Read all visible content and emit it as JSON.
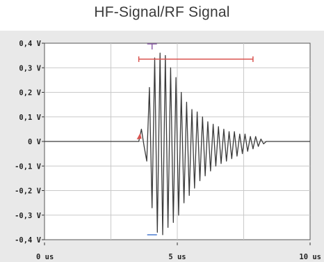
{
  "chart_data": {
    "type": "line",
    "title": "HF-Signal/RF Signal",
    "xlabel": "",
    "ylabel": "",
    "xlim": [
      0,
      10
    ],
    "ylim": [
      -0.4,
      0.4
    ],
    "x_ticks": [
      "0 us",
      "5 us",
      "10 us"
    ],
    "y_ticks": [
      "0,4 V",
      "0,3 V",
      "0,2 V",
      "0,1 V",
      "0 V",
      "-0,1 V",
      "-0,2 V",
      "-0,3 V",
      "-0,4 V"
    ],
    "grid": true,
    "series": [
      {
        "color": "#3a3a3a",
        "x": [
          0.0,
          2.2,
          3.0,
          3.55,
          3.65,
          3.75,
          3.85,
          3.95,
          4.05,
          4.15,
          4.25,
          4.35,
          4.45,
          4.55,
          4.65,
          4.75,
          4.85,
          4.95,
          5.05,
          5.15,
          5.25,
          5.35,
          5.45,
          5.55,
          5.65,
          5.75,
          5.85,
          5.95,
          6.05,
          6.15,
          6.25,
          6.35,
          6.45,
          6.55,
          6.65,
          6.75,
          6.85,
          6.95,
          7.05,
          7.15,
          7.25,
          7.35,
          7.45,
          7.55,
          7.65,
          7.75,
          7.85,
          7.95,
          8.05,
          8.15,
          8.25,
          8.35,
          9.0,
          10.0
        ],
        "y": [
          0.0,
          0.0,
          0.0,
          0.0,
          0.05,
          -0.02,
          -0.08,
          0.22,
          -0.27,
          0.34,
          -0.37,
          0.36,
          -0.38,
          0.35,
          -0.35,
          0.3,
          -0.33,
          0.26,
          -0.3,
          0.2,
          -0.25,
          0.16,
          -0.22,
          0.13,
          -0.19,
          0.12,
          -0.16,
          0.1,
          -0.14,
          0.08,
          -0.12,
          0.07,
          -0.1,
          0.06,
          -0.09,
          0.05,
          -0.08,
          0.04,
          -0.07,
          0.04,
          -0.06,
          0.03,
          -0.05,
          0.03,
          -0.04,
          0.02,
          -0.03,
          0.02,
          -0.02,
          0.01,
          -0.01,
          0.0,
          0.0,
          0.0
        ]
      }
    ],
    "markers": {
      "red_bar": {
        "x_start": 3.55,
        "x_end": 7.85,
        "y": 0.335,
        "color": "#d9534f"
      },
      "purple_tick": {
        "x": 4.05,
        "y": 0.4,
        "color": "#8c5fa8"
      },
      "blue_tick": {
        "x": 4.05,
        "y": -0.38,
        "color": "#4a7bd0"
      },
      "red_arrow": {
        "x": 3.55,
        "y": 0.02,
        "color": "#d9534f"
      }
    }
  }
}
